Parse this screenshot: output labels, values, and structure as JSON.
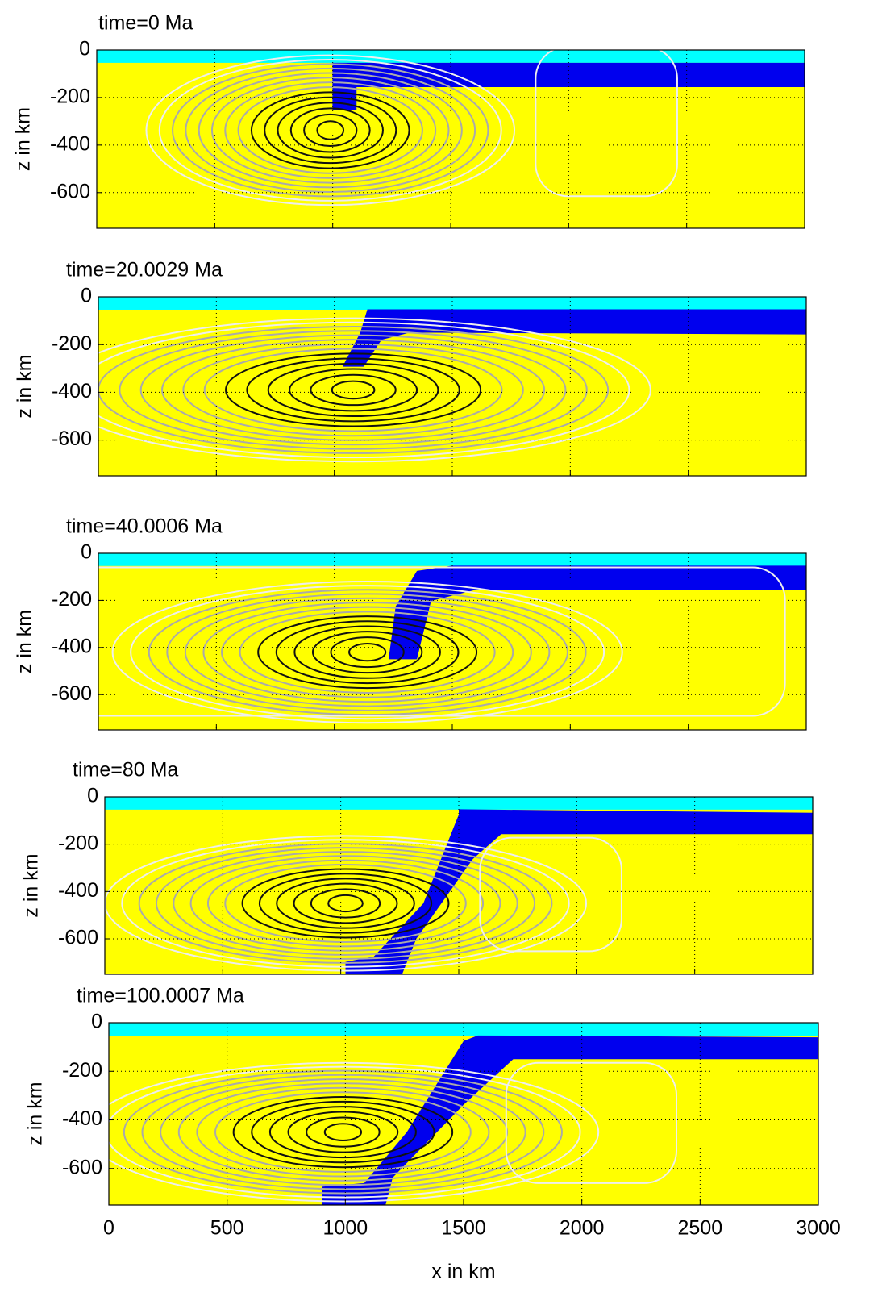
{
  "chart_data": [
    {
      "type": "field",
      "title": "time=0 Ma",
      "ylabel": "z in km",
      "xlim": [
        0,
        3000
      ],
      "ylim": [
        -750,
        0
      ],
      "xticks": [
        0,
        500,
        1000,
        1500,
        2000,
        2500,
        3000
      ],
      "yticks": [
        0,
        -200,
        -400,
        -600
      ],
      "grid": true,
      "xticklabels": false
    },
    {
      "type": "field",
      "title": "time=20.0029 Ma",
      "ylabel": "z in km",
      "xlim": [
        0,
        3000
      ],
      "ylim": [
        -750,
        0
      ],
      "xticks": [
        0,
        500,
        1000,
        1500,
        2000,
        2500,
        3000
      ],
      "yticks": [
        0,
        -200,
        -400,
        -600
      ],
      "grid": true,
      "xticklabels": false
    },
    {
      "type": "field",
      "title": "time=40.0006 Ma",
      "ylabel": "z in km",
      "xlim": [
        0,
        3000
      ],
      "ylim": [
        -750,
        0
      ],
      "xticks": [
        0,
        500,
        1000,
        1500,
        2000,
        2500,
        3000
      ],
      "yticks": [
        0,
        -200,
        -400,
        -600
      ],
      "grid": true,
      "xticklabels": false
    },
    {
      "type": "field",
      "title": "time=80 Ma",
      "ylabel": "z in km",
      "xlim": [
        0,
        3000
      ],
      "ylim": [
        -750,
        0
      ],
      "xticks": [
        0,
        500,
        1000,
        1500,
        2000,
        2500,
        3000
      ],
      "yticks": [
        0,
        -200,
        -400,
        -600
      ],
      "grid": true,
      "xticklabels": false
    },
    {
      "type": "field",
      "title": "time=100.0007 Ma",
      "ylabel": "z in km",
      "xlabel": "x in km",
      "xlim": [
        0,
        3000
      ],
      "ylim": [
        -750,
        0
      ],
      "xticks": [
        0,
        500,
        1000,
        1500,
        2000,
        2500,
        3000
      ],
      "yticks": [
        0,
        -200,
        -400,
        -600
      ],
      "grid": true,
      "xticklabels": true
    }
  ]
}
